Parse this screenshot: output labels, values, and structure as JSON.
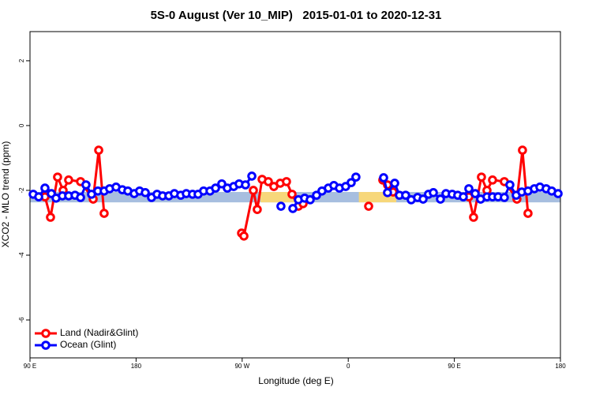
{
  "chart_data": {
    "type": "line",
    "title": "5S-0 August (Ver 10_MIP)   2015-01-01 to 2020-12-31",
    "x_label": "Longitude (deg E)",
    "y_label": "XCO2 - MLO trend (ppm)",
    "xlim": [
      90,
      540
    ],
    "ylim": [
      -7.17,
      2.9
    ],
    "xticks": [
      {
        "value": 90,
        "label": "90 E"
      },
      {
        "value": 180,
        "label": "180"
      },
      {
        "value": 270,
        "label": "90 W"
      },
      {
        "value": 360,
        "label": "0"
      },
      {
        "value": 450,
        "label": "90 E"
      },
      {
        "value": 540,
        "label": "180"
      }
    ],
    "yticks": [
      2,
      0,
      -2,
      -4,
      -6
    ],
    "legend": "bottom-left",
    "band": {
      "ylim": [
        -2.37,
        -2.05
      ],
      "color": "#a7bedf",
      "highlight_color": "#f7d77a",
      "highlights": [
        [
          285.5,
          315.6
        ],
        [
          369,
          400.7
        ]
      ]
    },
    "series": [
      {
        "name": "Land (Nadir&Glint)",
        "color": "#ff0000",
        "x": [
          102.7,
          107.4,
          113.4,
          118.1,
          122.8,
          132.9,
          143.6,
          148.3,
          152.9,
          200,
          269.5,
          271.5,
          279.5,
          282.8,
          286.9,
          292.2,
          296.9,
          302.3,
          307.6,
          312.3,
          317.7,
          321.7,
          340,
          377.3,
          382,
          389.3,
          393.3,
          398.0,
          430,
          462.3,
          466.3,
          473.0,
          477.7,
          482.4,
          492.4,
          503.1,
          507.8,
          512.5
        ],
        "values": [
          -2.2,
          -2.83,
          -1.59,
          -2.0,
          -1.68,
          -1.73,
          -2.27,
          -0.76,
          -2.71,
          null,
          -3.32,
          -3.41,
          -2.0,
          -2.59,
          -1.66,
          -1.73,
          -1.88,
          -1.78,
          -1.73,
          -2.12,
          -2.49,
          -2.41,
          null,
          -2.49,
          null,
          -1.68,
          -1.83,
          -2.05,
          null,
          -2.2,
          -2.83,
          -1.59,
          -2.0,
          -1.68,
          -1.73,
          -2.27,
          -0.76,
          -2.71
        ]
      },
      {
        "name": "Ocean (Glint)",
        "color": "#0000ff",
        "x": [
          92.7,
          97.4,
          102.7,
          108.1,
          112.1,
          117.5,
          122.8,
          128.2,
          132.9,
          137.5,
          142.2,
          147.6,
          152.9,
          157.6,
          163.0,
          168.3,
          173.0,
          178.4,
          183.0,
          187.8,
          193.1,
          197.8,
          202.5,
          207.8,
          212.5,
          217.9,
          222.6,
          227.9,
          232.6,
          237.3,
          242.7,
          247.4,
          252.7,
          257.4,
          262.8,
          267.4,
          272.8,
          278.2,
          290,
          302.9,
          307,
          313.0,
          317.7,
          323.0,
          327.7,
          333.1,
          337.7,
          343.1,
          347.8,
          352.5,
          357.8,
          362.5,
          366.5,
          380,
          390.0,
          393.3,
          399.4,
          403.4,
          408.7,
          413.4,
          418.8,
          423.5,
          428.1,
          432.2,
          438.2,
          442.9,
          448.2,
          452.9,
          457.6,
          462.3,
          467.7,
          472.3,
          477.7,
          482.4,
          487.1,
          492.4,
          497.1,
          502.5,
          507.2,
          512.5,
          517.9,
          522.6,
          527.9,
          532.6,
          538.0
        ],
        "values": [
          -2.12,
          -2.2,
          -1.93,
          -2.1,
          -2.24,
          -2.17,
          -2.17,
          -2.15,
          -2.22,
          -1.83,
          -2.12,
          -2.02,
          -2.02,
          -1.95,
          -1.9,
          -1.98,
          -2.02,
          -2.1,
          -2.02,
          -2.07,
          -2.22,
          -2.12,
          -2.17,
          -2.17,
          -2.1,
          -2.15,
          -2.1,
          -2.12,
          -2.12,
          -2.02,
          -2.02,
          -1.93,
          -1.8,
          -1.93,
          -1.88,
          -1.8,
          -1.83,
          -1.56,
          null,
          -2.49,
          null,
          -2.56,
          -2.29,
          -2.24,
          -2.29,
          -2.15,
          -2.02,
          -1.93,
          -1.85,
          -1.93,
          -1.88,
          -1.76,
          -1.59,
          null,
          -1.61,
          -2.07,
          -1.78,
          -2.15,
          -2.15,
          -2.29,
          -2.22,
          -2.27,
          -2.12,
          -2.07,
          -2.27,
          -2.1,
          -2.12,
          -2.15,
          -2.2,
          -1.95,
          -2.1,
          -2.27,
          -2.2,
          -2.2,
          -2.2,
          -2.22,
          -1.83,
          -2.15,
          -2.05,
          -2.02,
          -1.95,
          -1.9,
          -1.95,
          -2.02,
          -2.1
        ]
      }
    ]
  }
}
